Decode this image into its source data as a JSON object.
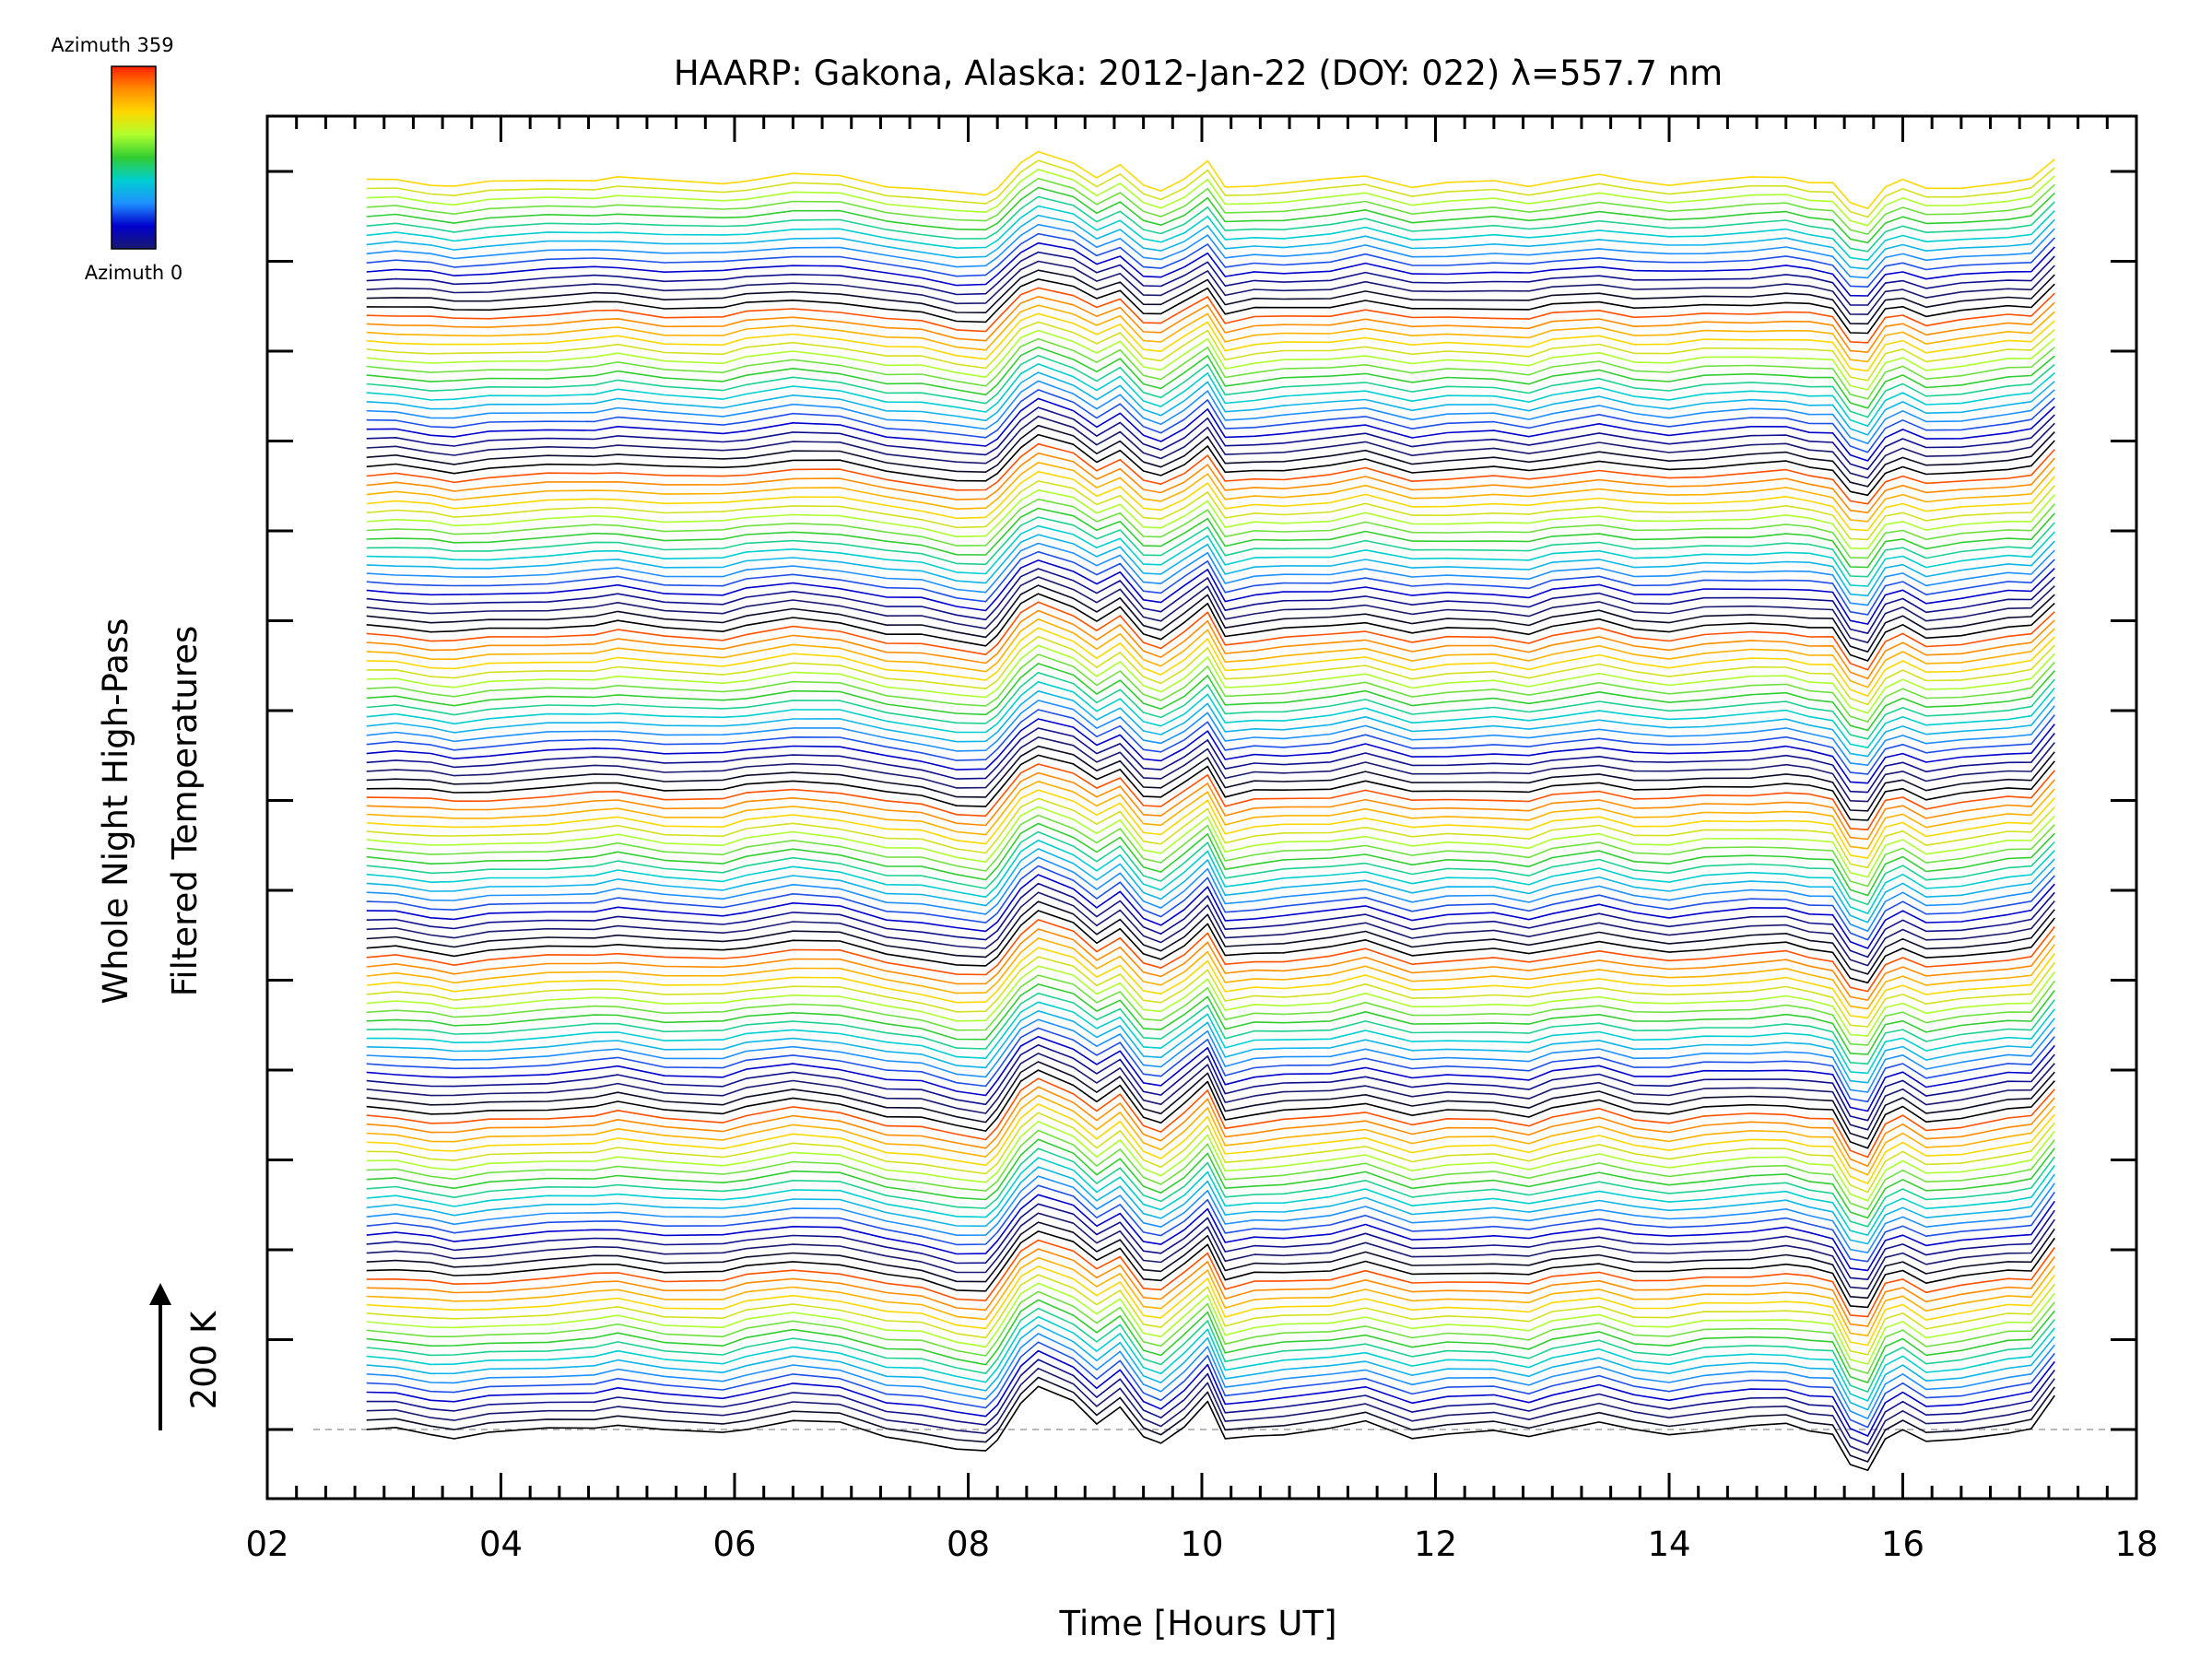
{
  "colorbar": {
    "top_label": "Azimuth 359",
    "bottom_label": "Azimuth 0",
    "colors": [
      "#191970",
      "#0000cd",
      "#1e90ff",
      "#00ced1",
      "#32cd32",
      "#adff2f",
      "#ffd700",
      "#ff8c00",
      "#ff2000"
    ]
  },
  "scale_label": "200 K",
  "chart_data": {
    "type": "line",
    "title": "HAARP: Gakona,  Alaska: 2012-Jan-22 (DOY: 022) λ=557.7 nm",
    "xlabel": "Time [Hours UT]",
    "ylabel_line1": "Whole Night High-Pass",
    "ylabel_line2": "Filtered Temperatures",
    "xlim": [
      2,
      18
    ],
    "x_ticks": [
      "02",
      "04",
      "06",
      "08",
      "10",
      "12",
      "14",
      "16",
      "18"
    ],
    "series_count": 141,
    "azimuth_range": [
      0,
      359
    ],
    "color_cycle": [
      "#000000",
      "#0c0c2a",
      "#191970",
      "#10108c",
      "#0000cd",
      "#1e50e8",
      "#1e90ff",
      "#10b4e8",
      "#00ced1",
      "#20d090",
      "#32cd32",
      "#70e040",
      "#adff2f",
      "#d4e020",
      "#ffd700",
      "#ffb000",
      "#ff8c00",
      "#ff5000"
    ],
    "base_profile": {
      "x": [
        2.85,
        3.1,
        3.4,
        3.6,
        3.9,
        4.4,
        4.8,
        5.0,
        5.4,
        5.9,
        6.1,
        6.5,
        6.9,
        7.3,
        7.6,
        7.9,
        8.15,
        8.25,
        8.45,
        8.6,
        8.9,
        9.1,
        9.3,
        9.5,
        9.65,
        9.85,
        10.05,
        10.2,
        10.45,
        10.7,
        11.1,
        11.4,
        11.8,
        12.1,
        12.5,
        12.8,
        13.0,
        13.4,
        13.7,
        14.0,
        14.3,
        14.7,
        15.0,
        15.2,
        15.4,
        15.55,
        15.7,
        15.85,
        16.0,
        16.2,
        16.5,
        16.9,
        17.1,
        17.3
      ],
      "y": [
        0,
        0,
        -5,
        -8,
        -4,
        0,
        3,
        6,
        -2,
        -4,
        2,
        10,
        6,
        -8,
        -12,
        -22,
        -25,
        -10,
        30,
        45,
        30,
        8,
        25,
        -10,
        -15,
        5,
        30,
        -12,
        -6,
        -4,
        0,
        8,
        -8,
        -4,
        -3,
        -8,
        0,
        8,
        -2,
        -5,
        0,
        3,
        5,
        0,
        -4,
        -40,
        -45,
        -8,
        0,
        -15,
        -10,
        -2,
        0,
        35
      ]
    }
  }
}
